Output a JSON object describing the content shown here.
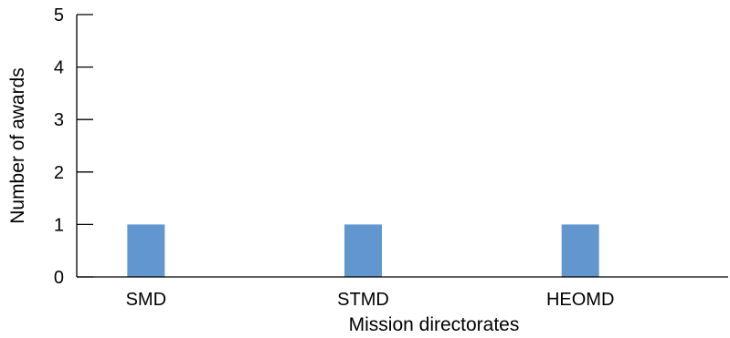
{
  "chart_data": {
    "type": "bar",
    "categories": [
      "SMD",
      "STMD",
      "HEOMD"
    ],
    "values": [
      1,
      1,
      1
    ],
    "xlabel": "Mission directorates",
    "ylabel": "Number of awards",
    "ylim": [
      0,
      5
    ],
    "yticks": [
      "0",
      "1",
      "2",
      "3",
      "4",
      "5"
    ],
    "grid": false,
    "legend": "none",
    "bar_color": "#6196cf",
    "axis_color": "#000000"
  }
}
